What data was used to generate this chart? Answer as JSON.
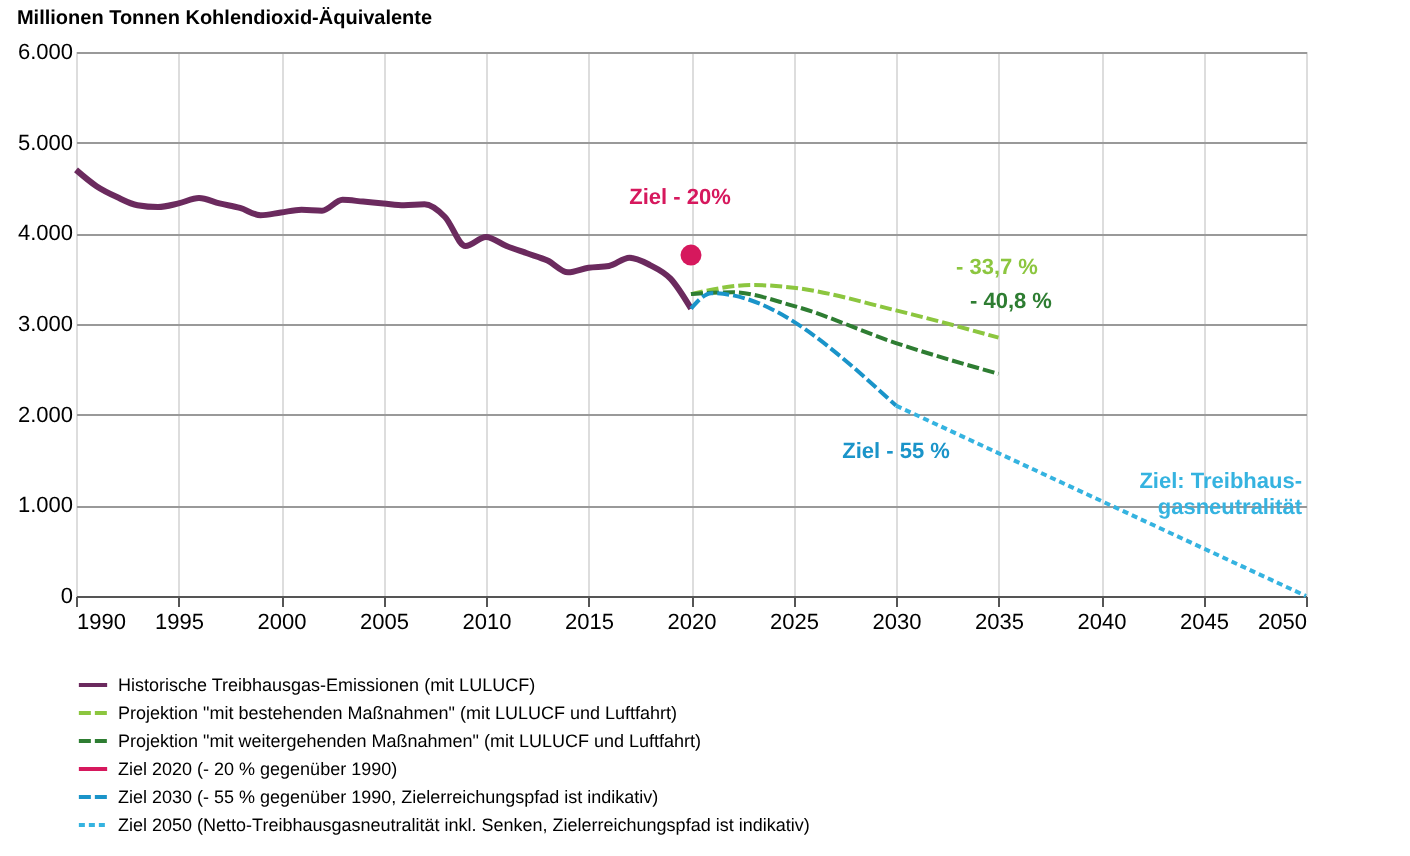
{
  "chart_data": {
    "type": "line",
    "ylabel": "Millionen Tonnen Kohlendioxid-Äquivalente",
    "xlim": [
      1990,
      2050
    ],
    "xticks": [
      1990,
      1995,
      2000,
      2005,
      2010,
      2015,
      2020,
      2025,
      2030,
      2035,
      2040,
      2045,
      2050
    ],
    "ylim": [
      0,
      6000
    ],
    "yticks": [
      0,
      {
        "value": 1000,
        "label": "1.000"
      },
      {
        "value": 2000,
        "label": "2.000"
      },
      {
        "value": 3000,
        "label": "3.000"
      },
      {
        "value": 4000,
        "label": "4.000"
      },
      {
        "value": 5000,
        "label": "5.000"
      },
      {
        "value": 6000,
        "label": "6.000"
      }
    ],
    "grid": true,
    "legend": "bottom",
    "series": [
      {
        "name": "Historische Treibhausgas-Emissionen (mit LULUCF)",
        "color": "#6b2a5e",
        "line_style": "solid",
        "x": [
          1990,
          1991,
          1992,
          1993,
          1994,
          1995,
          1996,
          1997,
          1998,
          1999,
          2000,
          2001,
          2002,
          2003,
          2004,
          2005,
          2006,
          2007,
          2008,
          2009,
          2010,
          2011,
          2012,
          2013,
          2014,
          2015,
          2016,
          2017,
          2018,
          2019,
          2020
        ],
        "values": [
          4700,
          4520,
          4400,
          4310,
          4290,
          4330,
          4390,
          4330,
          4280,
          4200,
          4230,
          4260,
          4250,
          4370,
          4350,
          4330,
          4310,
          4320,
          4180,
          3860,
          3960,
          3860,
          3780,
          3700,
          3570,
          3620,
          3640,
          3730,
          3650,
          3500,
          3170
        ]
      },
      {
        "name": "Projektion \"mit bestehenden Maßnahmen\" (mit LULUCF und Luftfahrt)",
        "color": "#8cc63f",
        "line_style": "dashed",
        "x": [
          2020,
          2023,
          2025,
          2030,
          2035
        ],
        "values": [
          3330,
          3430,
          3400,
          3150,
          2850
        ]
      },
      {
        "name": "Projektion \"mit weitergehenden Maßnahmen\" (mit LULUCF und Luftfahrt)",
        "color": "#2e7d32",
        "line_style": "dashed",
        "x": [
          2020,
          2022,
          2025,
          2030,
          2035
        ],
        "values": [
          3330,
          3350,
          3200,
          2790,
          2450
        ]
      },
      {
        "name": "Ziel 2020 (- 20 % gegenüber 1990)",
        "color": "#d6185d",
        "type": "scatter",
        "marker": "circle",
        "x": [
          2020
        ],
        "values": [
          3760
        ]
      },
      {
        "name": "Ziel 2030 (- 55 % gegenüber 1990, Zielerreichungspfad ist indikativ)",
        "color": "#1a94c9",
        "line_style": "dashed",
        "x": [
          2020,
          2021,
          2030
        ],
        "values": [
          3170,
          3340,
          2100
        ]
      },
      {
        "name": "Ziel 2050 (Netto-Treibhausgasneutralität inkl. Senken, Zielerreichungspfad ist indikativ)",
        "color": "#35b3e0",
        "line_style": "dotted",
        "x": [
          2030,
          2050
        ],
        "values": [
          2100,
          0
        ]
      }
    ],
    "annotations": [
      "Ziel - 20%",
      "Ziel - 55 %",
      "Ziel: Treibhaus-\ngasneutralität",
      "- 33,7 %",
      "- 40,8 %"
    ]
  }
}
